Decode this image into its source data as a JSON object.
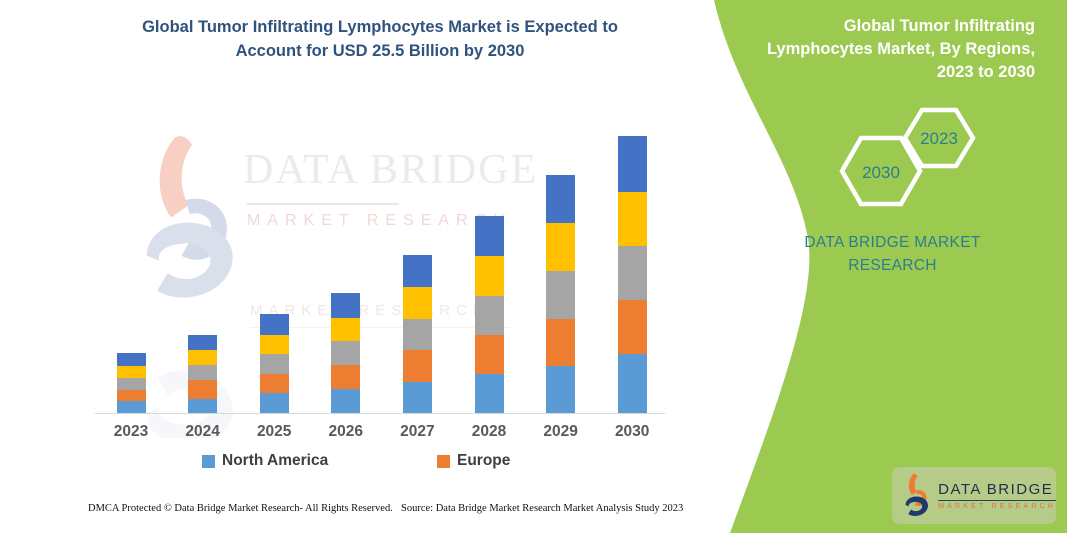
{
  "left": {
    "title": "Global Tumor Infiltrating Lymphocytes Market is Expected to\nAccount for USD 25.5 Billion by 2030",
    "title_color": "#30537d"
  },
  "watermark": {
    "brand": "DATA BRIDGE",
    "sub": "MARKET RESEARCH",
    "sub2": "MARKET RESEARCH"
  },
  "chart_data": {
    "type": "bar",
    "stacked": true,
    "title": "Global Tumor Infiltrating Lymphocytes Market is Expected to Account for USD 25.5 Billion by 2030",
    "unit": "USD Billion",
    "categories": [
      "2023",
      "2024",
      "2025",
      "2026",
      "2027",
      "2028",
      "2029",
      "2030"
    ],
    "series": [
      {
        "name": "North America",
        "color": "#5B9BD5",
        "in_legend": true,
        "values": [
          1.1,
          1.3,
          1.8,
          2.2,
          2.9,
          3.6,
          4.3,
          5.4
        ]
      },
      {
        "name": "Europe",
        "color": "#ED7D31",
        "in_legend": true,
        "values": [
          1.0,
          1.7,
          1.8,
          2.2,
          2.9,
          3.6,
          4.4,
          5.0
        ]
      },
      {
        "name": "",
        "color": "#A5A5A5",
        "in_legend": false,
        "values": [
          1.1,
          1.4,
          1.8,
          2.2,
          2.9,
          3.6,
          4.4,
          5.0
        ]
      },
      {
        "name": "",
        "color": "#FFC000",
        "in_legend": false,
        "values": [
          1.1,
          1.4,
          1.8,
          2.2,
          2.9,
          3.7,
          4.4,
          5.0
        ]
      },
      {
        "name": "",
        "color": "#4472C4",
        "in_legend": false,
        "values": [
          1.2,
          1.4,
          1.9,
          2.3,
          3.0,
          3.7,
          4.4,
          5.1
        ]
      }
    ],
    "totals_usd_billion": [
      5.5,
      7.2,
      9.1,
      11.1,
      14.6,
      18.2,
      21.9,
      25.5
    ],
    "xlabel": "",
    "ylabel": "",
    "ylim": [
      0,
      27
    ],
    "gridlines": false,
    "legend_position": "bottom",
    "axis_line_color": "#d9d9d9",
    "tick_label_color": "#595959"
  },
  "right_panel": {
    "bg_color": "#9cca51",
    "title": "Global Tumor Infiltrating\nLymphocytes Market, By Regions,\n2023 to 2030",
    "hexagons": [
      {
        "label": "2030"
      },
      {
        "label": "2023"
      }
    ],
    "hex_text_color": "#2c7d91",
    "brand_text": "DATA BRIDGE MARKET\nRESEARCH",
    "logo_card": {
      "brand": "DATA BRIDGE",
      "sub": "MARKET RESEARCH",
      "bg_color": "#b6cb88"
    }
  },
  "footer": {
    "dmca": "DMCA Protected © Data Bridge Market Research-  All Rights Reserved.",
    "source": "Source: Data Bridge Market Research  Market Analysis Study 2023"
  }
}
